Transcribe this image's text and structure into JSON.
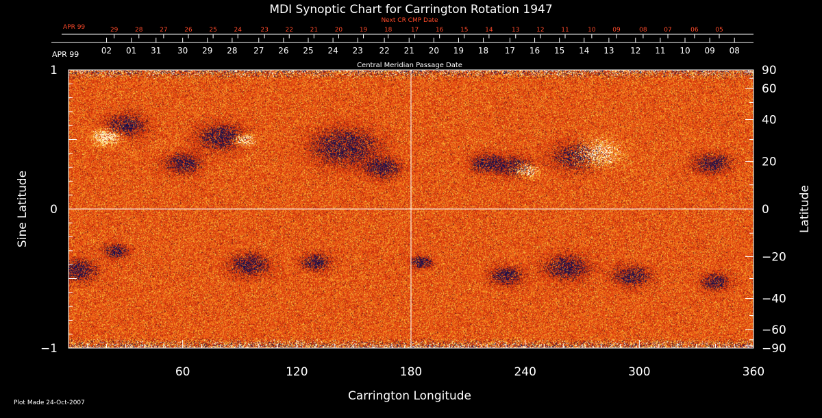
{
  "chart_data": {
    "type": "heatmap",
    "title": "MDI Synoptic Chart for Carrington Rotation 1947",
    "xlabel": "Carrington Longitude",
    "ylabel_left": "Sine Latitude",
    "ylabel_right": "Latitude",
    "xlim": [
      0,
      360
    ],
    "ylim": [
      -1,
      1
    ],
    "x_ticks": [
      60,
      120,
      180,
      240,
      300,
      360
    ],
    "y_ticks_left": [
      {
        "value": 1,
        "label": "1"
      },
      {
        "value": 0,
        "label": "0"
      },
      {
        "value": -1,
        "label": "−1"
      }
    ],
    "y_ticks_right": [
      {
        "deg": 90,
        "label": "90"
      },
      {
        "deg": 60,
        "label": "60"
      },
      {
        "deg": 40,
        "label": "40"
      },
      {
        "deg": 20,
        "label": "20"
      },
      {
        "deg": 0,
        "label": "0"
      },
      {
        "deg": -20,
        "label": "−20"
      },
      {
        "deg": -40,
        "label": "−40"
      },
      {
        "deg": -60,
        "label": "−60"
      },
      {
        "deg": -90,
        "label": "−90"
      }
    ],
    "cmp_axis_label": "Central Meridian Passage Date",
    "cmp_month_label": "APR 99",
    "cmp_dates": [
      {
        "lon": 20,
        "label": "02"
      },
      {
        "lon": 33,
        "label": "01"
      },
      {
        "lon": 46,
        "label": "31"
      },
      {
        "lon": 60,
        "label": "30"
      },
      {
        "lon": 73,
        "label": "29"
      },
      {
        "lon": 86,
        "label": "28"
      },
      {
        "lon": 100,
        "label": "27"
      },
      {
        "lon": 113,
        "label": "26"
      },
      {
        "lon": 126,
        "label": "25"
      },
      {
        "lon": 139,
        "label": "24"
      },
      {
        "lon": 152,
        "label": "23"
      },
      {
        "lon": 166,
        "label": "22"
      },
      {
        "lon": 179,
        "label": "21"
      },
      {
        "lon": 192,
        "label": "20"
      },
      {
        "lon": 205,
        "label": "19"
      },
      {
        "lon": 218,
        "label": "18"
      },
      {
        "lon": 232,
        "label": "17"
      },
      {
        "lon": 245,
        "label": "16"
      },
      {
        "lon": 258,
        "label": "15"
      },
      {
        "lon": 271,
        "label": "14"
      },
      {
        "lon": 284,
        "label": "13"
      },
      {
        "lon": 298,
        "label": "12"
      },
      {
        "lon": 311,
        "label": "11"
      },
      {
        "lon": 324,
        "label": "10"
      },
      {
        "lon": 337,
        "label": "09"
      },
      {
        "lon": 350,
        "label": "08"
      }
    ],
    "next_cr_axis_label": "Next CR CMP Date",
    "next_cr_month_label": "APR 99",
    "next_cr_dates": [
      {
        "lon": 24,
        "label": "29"
      },
      {
        "lon": 37,
        "label": "28"
      },
      {
        "lon": 50,
        "label": "27"
      },
      {
        "lon": 63,
        "label": "26"
      },
      {
        "lon": 76,
        "label": "25"
      },
      {
        "lon": 89,
        "label": "24"
      },
      {
        "lon": 103,
        "label": "23"
      },
      {
        "lon": 116,
        "label": "22"
      },
      {
        "lon": 129,
        "label": "21"
      },
      {
        "lon": 142,
        "label": "20"
      },
      {
        "lon": 155,
        "label": "19"
      },
      {
        "lon": 168,
        "label": "18"
      },
      {
        "lon": 182,
        "label": "17"
      },
      {
        "lon": 195,
        "label": "16"
      },
      {
        "lon": 208,
        "label": "15"
      },
      {
        "lon": 221,
        "label": "14"
      },
      {
        "lon": 235,
        "label": "13"
      },
      {
        "lon": 248,
        "label": "12"
      },
      {
        "lon": 261,
        "label": "11"
      },
      {
        "lon": 275,
        "label": "10"
      },
      {
        "lon": 288,
        "label": "09"
      },
      {
        "lon": 302,
        "label": "08"
      },
      {
        "lon": 315,
        "label": "07"
      },
      {
        "lon": 329,
        "label": "06"
      },
      {
        "lon": 342,
        "label": "05"
      }
    ],
    "active_regions": [
      {
        "lon": 30,
        "sinlat": 0.6,
        "polarity": "negative",
        "size": 1.1
      },
      {
        "lon": 20,
        "sinlat": 0.52,
        "polarity": "positive",
        "size": 0.8
      },
      {
        "lon": 60,
        "sinlat": 0.33,
        "polarity": "negative",
        "size": 1.0
      },
      {
        "lon": 80,
        "sinlat": 0.52,
        "polarity": "negative",
        "size": 1.3
      },
      {
        "lon": 92,
        "sinlat": 0.5,
        "polarity": "positive",
        "size": 0.6
      },
      {
        "lon": 145,
        "sinlat": 0.45,
        "polarity": "negative",
        "size": 1.8
      },
      {
        "lon": 165,
        "sinlat": 0.3,
        "polarity": "negative",
        "size": 1.0
      },
      {
        "lon": 220,
        "sinlat": 0.33,
        "polarity": "negative",
        "size": 0.9
      },
      {
        "lon": 235,
        "sinlat": 0.3,
        "polarity": "negative",
        "size": 1.0
      },
      {
        "lon": 240,
        "sinlat": 0.28,
        "polarity": "positive",
        "size": 0.7
      },
      {
        "lon": 268,
        "sinlat": 0.38,
        "polarity": "negative",
        "size": 1.4
      },
      {
        "lon": 277,
        "sinlat": 0.4,
        "polarity": "positive",
        "size": 1.3
      },
      {
        "lon": 338,
        "sinlat": 0.33,
        "polarity": "negative",
        "size": 1.0
      },
      {
        "lon": 5,
        "sinlat": -0.44,
        "polarity": "negative",
        "size": 1.0
      },
      {
        "lon": 25,
        "sinlat": -0.3,
        "polarity": "negative",
        "size": 0.7
      },
      {
        "lon": 95,
        "sinlat": -0.4,
        "polarity": "negative",
        "size": 1.1
      },
      {
        "lon": 130,
        "sinlat": -0.38,
        "polarity": "negative",
        "size": 0.8
      },
      {
        "lon": 185,
        "sinlat": -0.38,
        "polarity": "negative",
        "size": 0.6
      },
      {
        "lon": 230,
        "sinlat": -0.48,
        "polarity": "negative",
        "size": 0.9
      },
      {
        "lon": 262,
        "sinlat": -0.42,
        "polarity": "negative",
        "size": 1.2
      },
      {
        "lon": 296,
        "sinlat": -0.48,
        "polarity": "negative",
        "size": 1.0
      },
      {
        "lon": 340,
        "sinlat": -0.52,
        "polarity": "negative",
        "size": 0.8
      }
    ],
    "colors": {
      "background": "#000000",
      "positive": "#ffffe0",
      "negative": "#141050",
      "neutral": "#e8501a"
    }
  },
  "footer": {
    "plot_made": "Plot Made 24-Oct-2007"
  }
}
